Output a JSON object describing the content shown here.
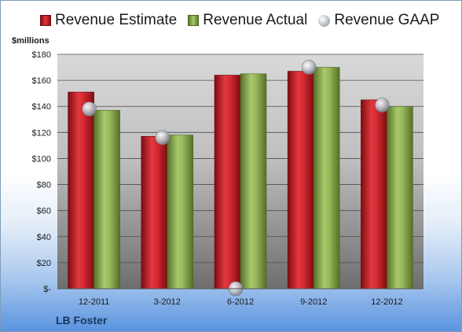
{
  "chart_data": {
    "type": "bar",
    "unit_label": "$millions",
    "company": "LB Foster",
    "categories": [
      "12-2011",
      "3-2012",
      "6-2012",
      "9-2012",
      "12-2012"
    ],
    "series": [
      {
        "name": "Revenue Estimate",
        "kind": "bar",
        "color": "#c81e26",
        "values": [
          151,
          117,
          164,
          167,
          145
        ]
      },
      {
        "name": "Revenue Actual",
        "kind": "bar",
        "color": "#8db04d",
        "values": [
          137,
          118,
          165,
          170,
          140
        ]
      },
      {
        "name": "Revenue GAAP",
        "kind": "marker",
        "color": "#b9bec6",
        "values": [
          138,
          116,
          0,
          170,
          141
        ]
      }
    ],
    "yticks": [
      "$-",
      "$20",
      "$40",
      "$60",
      "$80",
      "$100",
      "$120",
      "$140",
      "$160",
      "$180"
    ],
    "ylim": [
      0,
      180
    ],
    "grid": true,
    "legend_position": "top"
  }
}
